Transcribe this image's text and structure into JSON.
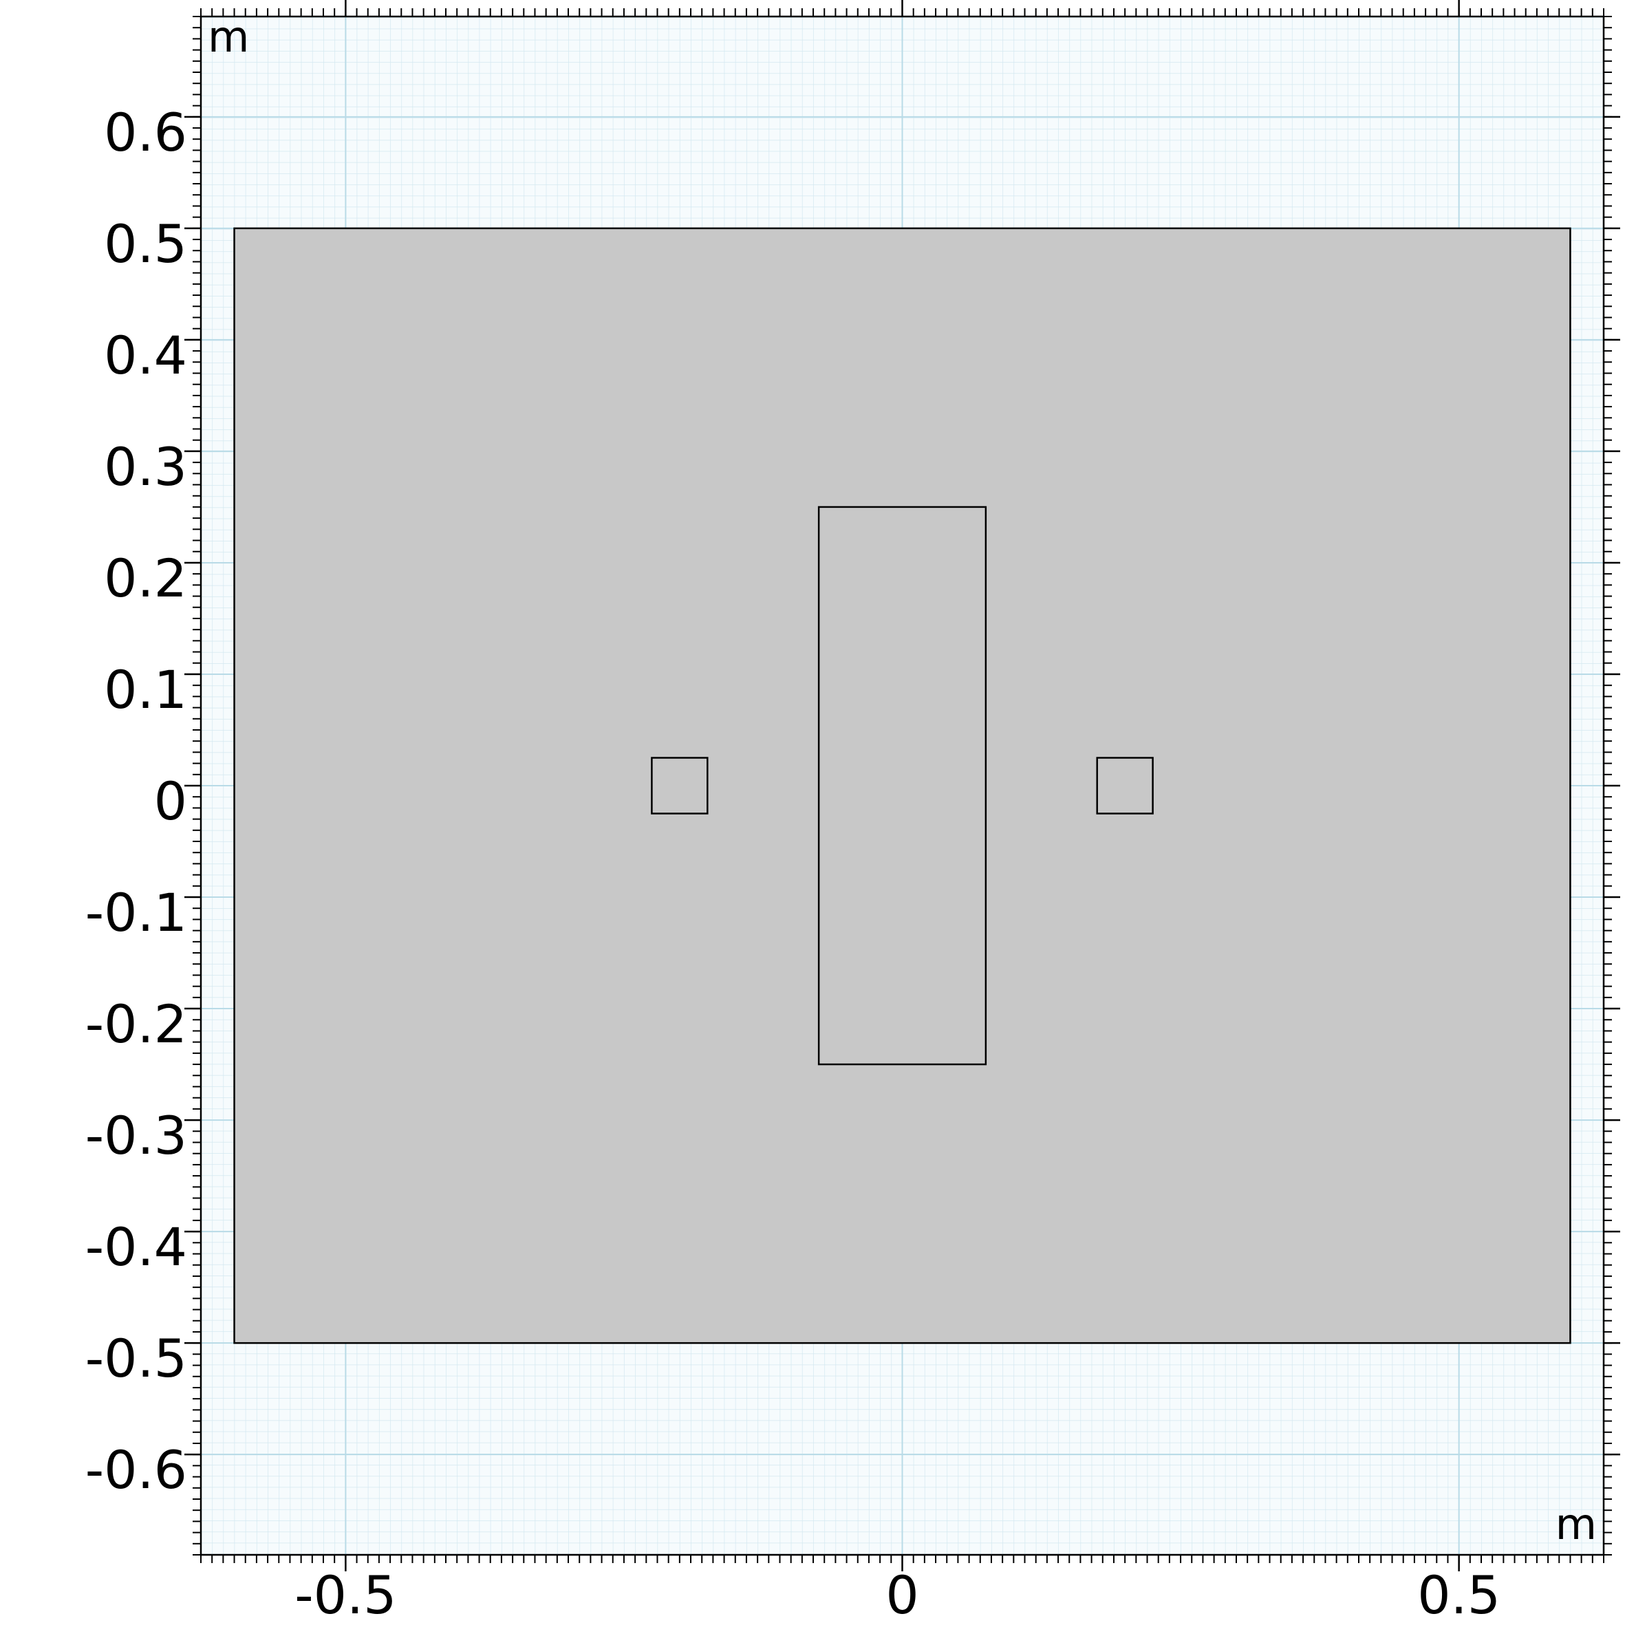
{
  "chart_data": {
    "type": "geometry",
    "x_unit": "m",
    "y_unit": "m",
    "xlim": [
      -0.63,
      0.63
    ],
    "ylim": [
      -0.69,
      0.69
    ],
    "xticks": [
      -0.5,
      0,
      0.5
    ],
    "yticks": [
      -0.6,
      -0.5,
      -0.4,
      -0.3,
      -0.2,
      -0.1,
      0,
      0.1,
      0.2,
      0.3,
      0.4,
      0.5,
      0.6
    ],
    "grid": true,
    "color": "#c8c8c8",
    "rectangles": [
      {
        "x": [
          -0.6,
          0.6
        ],
        "y": [
          -0.5,
          0.5
        ]
      },
      {
        "x": [
          -0.075,
          0.075
        ],
        "y": [
          -0.25,
          0.25
        ]
      },
      {
        "x": [
          -0.225,
          -0.175
        ],
        "y": [
          -0.025,
          0.025
        ]
      },
      {
        "x": [
          0.175,
          0.225
        ],
        "y": [
          -0.025,
          0.025
        ]
      }
    ]
  }
}
